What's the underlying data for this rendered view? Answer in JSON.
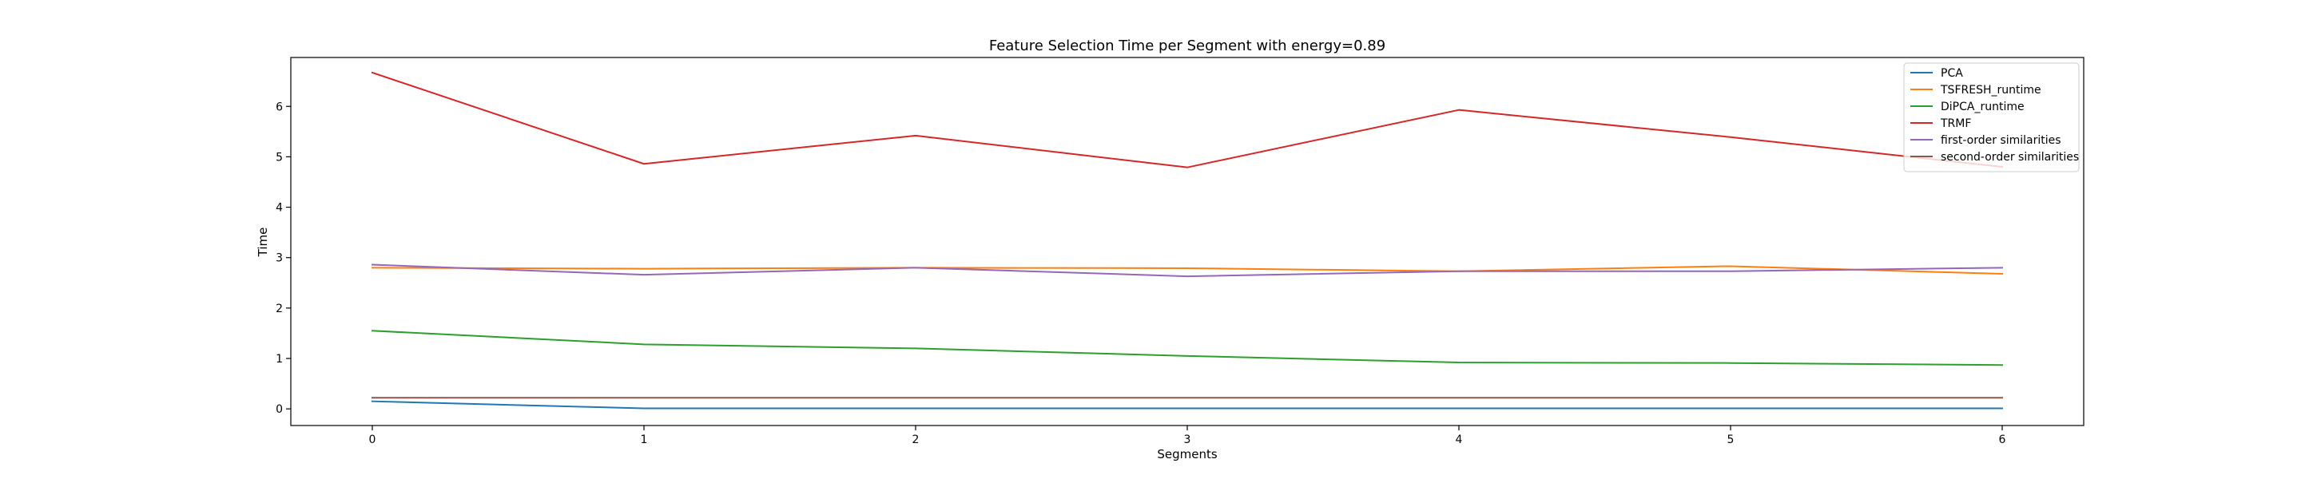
{
  "chart_data": {
    "type": "line",
    "title": "Feature Selection Time per Segment with energy=0.89",
    "xlabel": "Segments",
    "ylabel": "Time",
    "xlim": [
      -0.3,
      6.3
    ],
    "ylim": [
      -0.33,
      6.97
    ],
    "x": [
      0,
      1,
      2,
      3,
      4,
      5,
      6
    ],
    "x_ticks": [
      "0",
      "1",
      "2",
      "3",
      "4",
      "5",
      "6"
    ],
    "y_ticks": [
      0,
      1,
      2,
      3,
      4,
      5,
      6
    ],
    "y_tick_labels": [
      "0",
      "1",
      "2",
      "3",
      "4",
      "5",
      "6"
    ],
    "grid": false,
    "legend_position": "top-right",
    "series": [
      {
        "name": "PCA",
        "color": "#1f77b4",
        "values": [
          0.15,
          0.01,
          0.01,
          0.01,
          0.01,
          0.01,
          0.01
        ]
      },
      {
        "name": "TSFRESH_runtime",
        "color": "#ff7f0e",
        "values": [
          2.8,
          2.78,
          2.8,
          2.79,
          2.73,
          2.83,
          2.68
        ]
      },
      {
        "name": "DiPCA_runtime",
        "color": "#2ca02c",
        "values": [
          1.55,
          1.28,
          1.2,
          1.05,
          0.92,
          0.91,
          0.87
        ]
      },
      {
        "name": "TRMF",
        "color": "#d62728",
        "values": [
          6.67,
          4.86,
          5.42,
          4.79,
          5.93,
          5.39,
          4.8
        ]
      },
      {
        "name": "first-order similarities",
        "color": "#9467bd",
        "values": [
          2.86,
          2.66,
          2.8,
          2.63,
          2.73,
          2.73,
          2.8
        ]
      },
      {
        "name": "second-order similarities",
        "color": "#8c564b",
        "values": [
          0.22,
          0.22,
          0.22,
          0.22,
          0.22,
          0.22,
          0.22
        ]
      }
    ]
  }
}
